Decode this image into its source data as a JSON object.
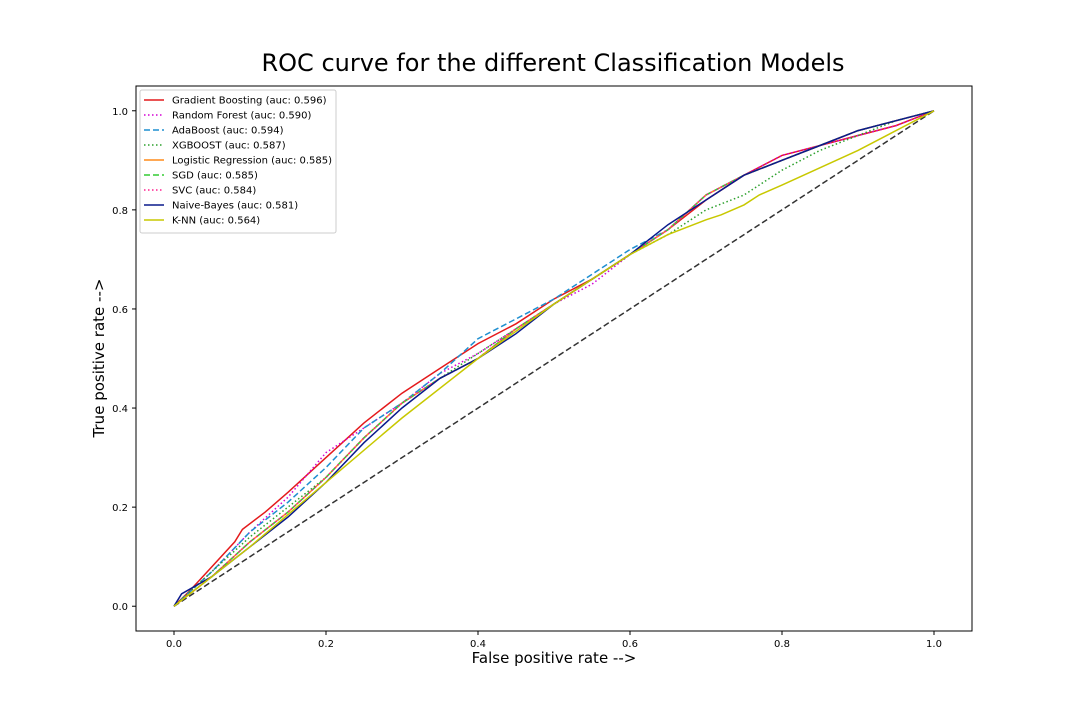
{
  "chart_data": {
    "type": "line",
    "title": "ROC curve for the different Classification Models",
    "xlabel": "False positive rate -->",
    "ylabel": "True positive rate -->",
    "xlim": [
      -0.05,
      1.05
    ],
    "ylim": [
      -0.05,
      1.05
    ],
    "xticks": [
      0.0,
      0.2,
      0.4,
      0.6,
      0.8,
      1.0
    ],
    "yticks": [
      0.0,
      0.2,
      0.4,
      0.6,
      0.8,
      1.0
    ],
    "xtick_labels": [
      "0.0",
      "0.2",
      "0.4",
      "0.6",
      "0.8",
      "1.0"
    ],
    "ytick_labels": [
      "0.0",
      "0.2",
      "0.4",
      "0.6",
      "0.8",
      "1.0"
    ],
    "grid": false,
    "legend_position": "upper-left",
    "chance_line": {
      "x": [
        0,
        1
      ],
      "y": [
        0,
        1
      ],
      "color": "#333333",
      "style": "dashed"
    },
    "series": [
      {
        "name": "Gradient Boosting (auc: 0.596)",
        "color": "#e41a1c",
        "style": "solid",
        "x": [
          0,
          0.02,
          0.05,
          0.08,
          0.09,
          0.12,
          0.15,
          0.2,
          0.25,
          0.3,
          0.35,
          0.4,
          0.45,
          0.5,
          0.55,
          0.6,
          0.65,
          0.7,
          0.75,
          0.8,
          0.85,
          0.9,
          0.95,
          1.0
        ],
        "y": [
          0,
          0.03,
          0.08,
          0.13,
          0.155,
          0.19,
          0.23,
          0.3,
          0.37,
          0.43,
          0.48,
          0.53,
          0.57,
          0.62,
          0.66,
          0.71,
          0.76,
          0.82,
          0.87,
          0.91,
          0.93,
          0.95,
          0.97,
          1.0
        ]
      },
      {
        "name": "Random Forest (auc: 0.590)",
        "color": "#d400d4",
        "style": "dotted",
        "x": [
          0,
          0.05,
          0.1,
          0.15,
          0.2,
          0.25,
          0.3,
          0.35,
          0.4,
          0.45,
          0.5,
          0.55,
          0.6,
          0.65,
          0.7,
          0.75,
          0.8,
          0.85,
          0.9,
          0.95,
          1.0
        ],
        "y": [
          0,
          0.07,
          0.15,
          0.22,
          0.31,
          0.36,
          0.41,
          0.47,
          0.51,
          0.56,
          0.61,
          0.65,
          0.71,
          0.76,
          0.83,
          0.87,
          0.91,
          0.93,
          0.95,
          0.97,
          1.0
        ]
      },
      {
        "name": "AdaBoost (auc: 0.594)",
        "color": "#1f8fd0",
        "style": "dashed",
        "x": [
          0,
          0.05,
          0.1,
          0.15,
          0.2,
          0.25,
          0.3,
          0.35,
          0.4,
          0.45,
          0.5,
          0.55,
          0.6,
          0.65,
          0.7,
          0.75,
          0.8,
          0.85,
          0.9,
          0.95,
          1.0
        ],
        "y": [
          0,
          0.07,
          0.15,
          0.21,
          0.28,
          0.36,
          0.41,
          0.47,
          0.54,
          0.58,
          0.62,
          0.67,
          0.72,
          0.76,
          0.83,
          0.87,
          0.9,
          0.93,
          0.96,
          0.98,
          1.0
        ]
      },
      {
        "name": "XGBOOST (auc: 0.587)",
        "color": "#2ca02c",
        "style": "dotted",
        "x": [
          0,
          0.05,
          0.1,
          0.15,
          0.2,
          0.25,
          0.3,
          0.35,
          0.4,
          0.45,
          0.5,
          0.55,
          0.6,
          0.65,
          0.7,
          0.75,
          0.8,
          0.85,
          0.9,
          0.95,
          1.0
        ],
        "y": [
          0,
          0.07,
          0.14,
          0.2,
          0.26,
          0.34,
          0.41,
          0.46,
          0.51,
          0.56,
          0.61,
          0.66,
          0.71,
          0.75,
          0.8,
          0.83,
          0.88,
          0.92,
          0.95,
          0.98,
          1.0
        ]
      },
      {
        "name": "Logistic Regression (auc: 0.585)",
        "color": "#ff8c1a",
        "style": "solid",
        "x": [
          0,
          0.05,
          0.1,
          0.15,
          0.2,
          0.25,
          0.3,
          0.35,
          0.4,
          0.45,
          0.5,
          0.55,
          0.6,
          0.65,
          0.7,
          0.75,
          0.8,
          0.85,
          0.9,
          0.95,
          1.0
        ],
        "y": [
          0,
          0.06,
          0.13,
          0.19,
          0.26,
          0.34,
          0.41,
          0.46,
          0.5,
          0.56,
          0.61,
          0.66,
          0.71,
          0.76,
          0.83,
          0.87,
          0.9,
          0.93,
          0.96,
          0.98,
          1.0
        ]
      },
      {
        "name": "SGD (auc: 0.585)",
        "color": "#33cc33",
        "style": "dashed",
        "x": [
          0,
          0.05,
          0.1,
          0.15,
          0.2,
          0.25,
          0.3,
          0.35,
          0.4,
          0.45,
          0.5,
          0.55,
          0.6,
          0.65,
          0.7,
          0.75,
          0.8,
          0.85,
          0.9,
          0.95,
          1.0
        ],
        "y": [
          0,
          0.06,
          0.13,
          0.19,
          0.26,
          0.34,
          0.41,
          0.46,
          0.5,
          0.56,
          0.61,
          0.66,
          0.71,
          0.76,
          0.83,
          0.87,
          0.9,
          0.93,
          0.96,
          0.98,
          1.0
        ]
      },
      {
        "name": "SVC (auc: 0.584)",
        "color": "#ff1f8f",
        "style": "dotted",
        "x": [
          0,
          0.05,
          0.1,
          0.15,
          0.2,
          0.25,
          0.3,
          0.35,
          0.4,
          0.45,
          0.5,
          0.55,
          0.6,
          0.65,
          0.7,
          0.75,
          0.8,
          0.85,
          0.9,
          0.95,
          1.0
        ],
        "y": [
          0,
          0.06,
          0.13,
          0.19,
          0.26,
          0.34,
          0.41,
          0.46,
          0.5,
          0.56,
          0.61,
          0.66,
          0.71,
          0.76,
          0.83,
          0.87,
          0.9,
          0.93,
          0.96,
          0.98,
          1.0
        ]
      },
      {
        "name": "Naive-Bayes (auc: 0.581)",
        "color": "#0a1a8c",
        "style": "solid",
        "x": [
          0,
          0.01,
          0.05,
          0.1,
          0.15,
          0.2,
          0.25,
          0.3,
          0.35,
          0.4,
          0.45,
          0.5,
          0.55,
          0.6,
          0.65,
          0.7,
          0.75,
          0.8,
          0.85,
          0.9,
          0.95,
          1.0
        ],
        "y": [
          0,
          0.025,
          0.06,
          0.12,
          0.18,
          0.25,
          0.33,
          0.4,
          0.46,
          0.5,
          0.55,
          0.61,
          0.66,
          0.71,
          0.77,
          0.82,
          0.87,
          0.9,
          0.93,
          0.96,
          0.98,
          1.0
        ]
      },
      {
        "name": "K-NN (auc: 0.564)",
        "color": "#c8c800",
        "style": "solid",
        "x": [
          0,
          0.1,
          0.2,
          0.3,
          0.4,
          0.5,
          0.6,
          0.65,
          0.7,
          0.72,
          0.75,
          0.77,
          0.8,
          0.9,
          1.0
        ],
        "y": [
          0,
          0.12,
          0.25,
          0.38,
          0.5,
          0.61,
          0.71,
          0.75,
          0.78,
          0.79,
          0.81,
          0.83,
          0.85,
          0.92,
          1.0
        ]
      }
    ]
  }
}
